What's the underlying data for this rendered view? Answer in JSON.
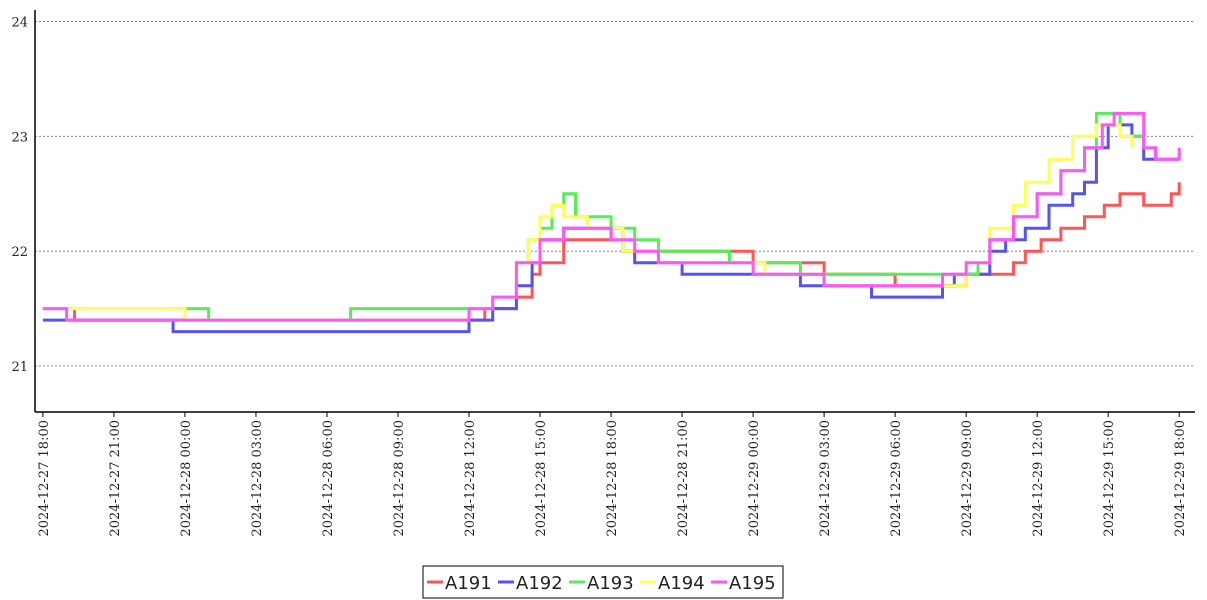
{
  "chart_data": {
    "type": "line",
    "title": "",
    "xlabel": "",
    "ylabel": "",
    "ylim": [
      20.6,
      24.1
    ],
    "yticks": [
      21,
      22,
      23,
      24
    ],
    "grid": "horizontal dotted",
    "legend_placement": "bottom-center",
    "xlim": [
      "2024-12-27 17:40",
      "2024-12-29 18:40"
    ],
    "xticks": [
      "2024-12-27 18:00",
      "2024-12-27 21:00",
      "2024-12-28 00:00",
      "2024-12-28 03:00",
      "2024-12-28 06:00",
      "2024-12-28 09:00",
      "2024-12-28 12:00",
      "2024-12-28 15:00",
      "2024-12-28 18:00",
      "2024-12-28 21:00",
      "2024-12-29 00:00",
      "2024-12-29 03:00",
      "2024-12-29 06:00",
      "2024-12-29 09:00",
      "2024-12-29 12:00",
      "2024-12-29 15:00",
      "2024-12-29 18:00"
    ],
    "series": [
      {
        "name": "A191",
        "color": "#ff5555",
        "x": [
          "2024-12-27 18:00",
          "2024-12-27 19:20",
          "2024-12-28 11:00",
          "2024-12-28 12:40",
          "2024-12-28 14:00",
          "2024-12-28 14:40",
          "2024-12-28 15:00",
          "2024-12-28 16:00",
          "2024-12-28 18:00",
          "2024-12-28 18:30",
          "2024-12-29 00:00",
          "2024-12-29 03:00",
          "2024-12-29 06:00",
          "2024-12-29 09:00",
          "2024-12-29 11:00",
          "2024-12-29 11:30",
          "2024-12-29 12:10",
          "2024-12-29 13:00",
          "2024-12-29 14:00",
          "2024-12-29 14:50",
          "2024-12-29 15:30",
          "2024-12-29 16:00",
          "2024-12-29 16:30",
          "2024-12-29 17:00",
          "2024-12-29 17:40",
          "2024-12-29 18:00"
        ],
        "values": [
          21.5,
          21.4,
          21.4,
          21.5,
          21.6,
          21.8,
          21.9,
          22.1,
          22.2,
          22.0,
          21.9,
          21.8,
          21.7,
          21.8,
          21.9,
          22.0,
          22.1,
          22.2,
          22.3,
          22.4,
          22.5,
          22.5,
          22.4,
          22.4,
          22.5,
          22.6
        ]
      },
      {
        "name": "A192",
        "color": "#5555ee",
        "x": [
          "2024-12-27 18:00",
          "2024-12-27 23:30",
          "2024-12-28 08:00",
          "2024-12-28 12:00",
          "2024-12-28 13:00",
          "2024-12-28 14:00",
          "2024-12-28 14:40",
          "2024-12-28 15:00",
          "2024-12-28 16:00",
          "2024-12-28 18:30",
          "2024-12-28 19:00",
          "2024-12-28 21:00",
          "2024-12-29 02:00",
          "2024-12-29 05:00",
          "2024-12-29 08:00",
          "2024-12-29 08:30",
          "2024-12-29 10:00",
          "2024-12-29 10:40",
          "2024-12-29 11:30",
          "2024-12-29 12:30",
          "2024-12-29 13:30",
          "2024-12-29 14:00",
          "2024-12-29 14:30",
          "2024-12-29 15:00",
          "2024-12-29 16:00",
          "2024-12-29 16:30",
          "2024-12-29 18:00"
        ],
        "values": [
          21.4,
          21.3,
          21.3,
          21.4,
          21.5,
          21.7,
          21.9,
          22.1,
          22.2,
          22.0,
          21.9,
          21.8,
          21.7,
          21.6,
          21.7,
          21.8,
          22.0,
          22.1,
          22.2,
          22.4,
          22.5,
          22.6,
          22.9,
          23.1,
          23.0,
          22.8,
          22.8
        ]
      },
      {
        "name": "A193",
        "color": "#55ee55",
        "x": [
          "2024-12-27 18:00",
          "2024-12-28 01:00",
          "2024-12-28 07:00",
          "2024-12-28 12:00",
          "2024-12-28 13:00",
          "2024-12-28 14:00",
          "2024-12-28 14:30",
          "2024-12-28 15:00",
          "2024-12-28 15:30",
          "2024-12-28 16:00",
          "2024-12-28 16:30",
          "2024-12-28 18:00",
          "2024-12-28 19:00",
          "2024-12-28 20:00",
          "2024-12-28 23:00",
          "2024-12-29 02:00",
          "2024-12-29 08:00",
          "2024-12-29 09:30",
          "2024-12-29 10:00",
          "2024-12-29 11:00",
          "2024-12-29 12:00",
          "2024-12-29 13:00",
          "2024-12-29 14:00",
          "2024-12-29 14:30",
          "2024-12-29 15:30",
          "2024-12-29 16:30"
        ],
        "values": [
          21.5,
          21.4,
          21.5,
          21.5,
          21.6,
          21.9,
          22.1,
          22.2,
          22.4,
          22.5,
          22.3,
          22.2,
          22.1,
          22.0,
          21.9,
          21.8,
          21.8,
          21.9,
          22.1,
          22.3,
          22.5,
          22.7,
          22.9,
          23.2,
          23.0,
          22.9
        ]
      },
      {
        "name": "A194",
        "color": "#ffff55",
        "x": [
          "2024-12-27 18:00",
          "2024-12-28 00:00",
          "2024-12-28 09:00",
          "2024-12-28 12:00",
          "2024-12-28 13:00",
          "2024-12-28 14:00",
          "2024-12-28 14:30",
          "2024-12-28 15:00",
          "2024-12-28 15:30",
          "2024-12-28 16:00",
          "2024-12-28 17:00",
          "2024-12-28 18:30",
          "2024-12-28 20:00",
          "2024-12-28 23:00",
          "2024-12-29 00:30",
          "2024-12-29 03:00",
          "2024-12-29 09:00",
          "2024-12-29 10:00",
          "2024-12-29 11:00",
          "2024-12-29 11:30",
          "2024-12-29 12:30",
          "2024-12-29 13:30",
          "2024-12-29 14:30",
          "2024-12-29 15:30",
          "2024-12-29 16:00"
        ],
        "values": [
          21.5,
          21.4,
          21.4,
          21.5,
          21.6,
          21.9,
          22.1,
          22.3,
          22.4,
          22.3,
          22.2,
          22.0,
          21.9,
          21.9,
          21.8,
          21.7,
          21.9,
          22.2,
          22.4,
          22.6,
          22.8,
          23.0,
          23.1,
          23.0,
          22.9
        ]
      },
      {
        "name": "A195",
        "color": "#ff55ff",
        "x": [
          "2024-12-27 18:00",
          "2024-12-27 19:00",
          "2024-12-28 09:00",
          "2024-12-28 12:00",
          "2024-12-28 13:00",
          "2024-12-28 14:00",
          "2024-12-28 15:00",
          "2024-12-28 16:00",
          "2024-12-28 18:00",
          "2024-12-28 19:00",
          "2024-12-28 20:00",
          "2024-12-29 00:00",
          "2024-12-29 03:00",
          "2024-12-29 08:00",
          "2024-12-29 09:00",
          "2024-12-29 10:00",
          "2024-12-29 11:00",
          "2024-12-29 12:00",
          "2024-12-29 13:00",
          "2024-12-29 14:00",
          "2024-12-29 14:45",
          "2024-12-29 15:15",
          "2024-12-29 16:30",
          "2024-12-29 17:00",
          "2024-12-29 18:00"
        ],
        "values": [
          21.5,
          21.4,
          21.4,
          21.5,
          21.6,
          21.9,
          22.1,
          22.2,
          22.1,
          22.0,
          21.9,
          21.8,
          21.7,
          21.8,
          21.9,
          22.1,
          22.3,
          22.5,
          22.7,
          22.9,
          23.1,
          23.2,
          22.9,
          22.8,
          22.9
        ]
      }
    ]
  }
}
